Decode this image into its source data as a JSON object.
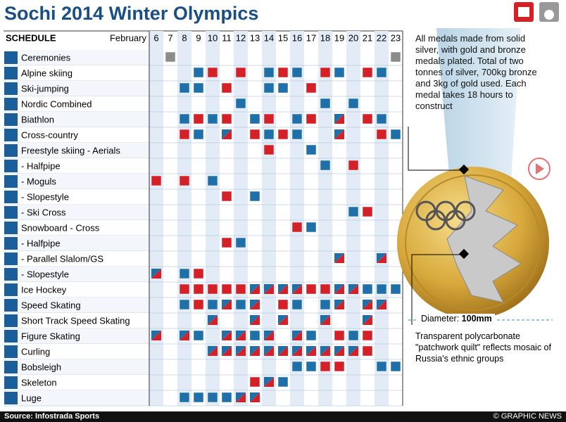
{
  "header": {
    "title": "Sochi 2014 Winter Olympics"
  },
  "schedule": {
    "label": "SCHEDULE",
    "month": "February",
    "days": [
      6,
      7,
      8,
      9,
      10,
      11,
      12,
      13,
      14,
      15,
      16,
      17,
      18,
      19,
      20,
      21,
      22,
      23
    ],
    "legend_codes": {
      "b": "#1f6fa8",
      "r": "#d42128",
      "g": "#8c8c8c"
    },
    "rows": [
      {
        "sport": "Ceremonies",
        "cells": ".g...............g"
      },
      {
        "sport": "Alpine skiing",
        "cells": "...br.r.brb.rb.rb."
      },
      {
        "sport": "Ski-jumping",
        "cells": "..bb.r..bb.r......"
      },
      {
        "sport": "Nordic Combined",
        "cells": "......b.....b.b..."
      },
      {
        "sport": "Biathlon",
        "cells": "..brbr.br.br.s.rb."
      },
      {
        "sport": "Cross-country",
        "cells": "..rb.s.rbrb..s..rb"
      },
      {
        "sport": "Freestyle skiing - Aerials",
        "cells": "........r..b......"
      },
      {
        "sport": "- Halfpipe",
        "cells": "............b.r..."
      },
      {
        "sport": "- Moguls",
        "cells": "r.r.b............."
      },
      {
        "sport": "- Slopestyle",
        "cells": ".....r.b.........."
      },
      {
        "sport": "- Ski Cross",
        "cells": "..............br.."
      },
      {
        "sport": "Snowboard - Cross",
        "cells": "..........rb......"
      },
      {
        "sport": "- Halfpipe",
        "cells": ".....rb..........."
      },
      {
        "sport": "- Parallel Slalom/GS",
        "cells": ".............s..s."
      },
      {
        "sport": "- Slopestyle",
        "cells": "s.br.............."
      },
      {
        "sport": "Ice Hockey",
        "cells": "..rrrrrssssrrssbbb"
      },
      {
        "sport": "Speed Skating",
        "cells": "..brbsbs.rb.bs.ss."
      },
      {
        "sport": "Short Track Speed Skating",
        "cells": "....s..s.s..s..s.."
      },
      {
        "sport": "Figure Skating",
        "cells": "s.sb.ssbs.sb.rbr.."
      },
      {
        "sport": "Curling",
        "cells": "....sssssssssssr.."
      },
      {
        "sport": "Bobsleigh",
        "cells": "..........bbrr..bb"
      },
      {
        "sport": "Skeleton",
        "cells": ".......rsb........"
      },
      {
        "sport": "Luge",
        "cells": "..bbbbss.........."
      }
    ]
  },
  "medal": {
    "note": "All medals made from solid silver, with gold and bronze medals plated. Total of two tonnes of silver, 700kg bronze and 3kg of gold used. Each medal takes 18 hours to construct",
    "diameter_label": "Diameter:",
    "diameter_value": "100mm",
    "caption": "Transparent polycarbonate \"patchwork quilt\" reflects mosaic of Russia's ethnic groups"
  },
  "footer": {
    "source": "Source: Infostrada Sports",
    "credit": "© GRAPHIC NEWS"
  }
}
